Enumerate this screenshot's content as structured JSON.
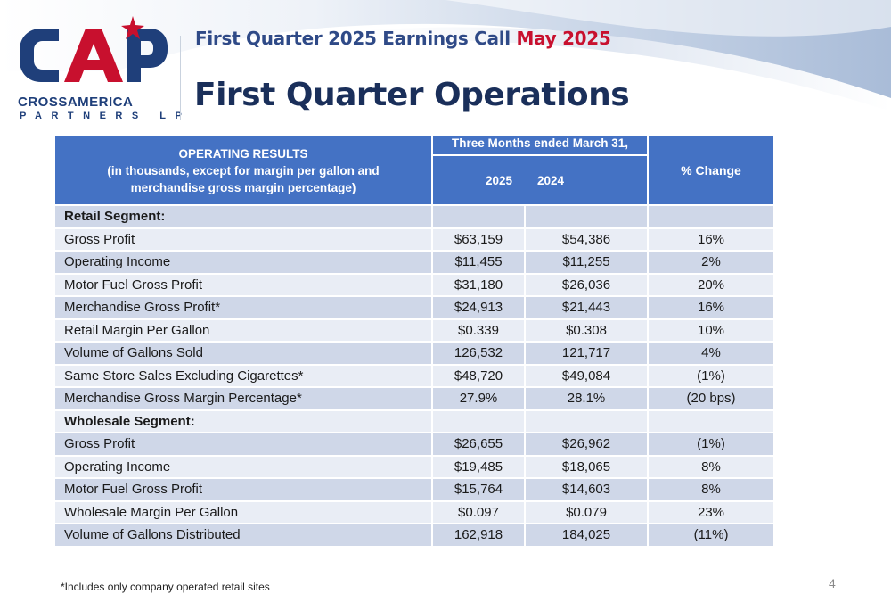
{
  "header": {
    "subtitle_main": "First Quarter 2025 Earnings Call",
    "subtitle_date": "May 2025",
    "title": "First Quarter Operations"
  },
  "logo": {
    "mark": "CAP",
    "line1": "CROSSAMERICA",
    "line2": "PARTNERS LP",
    "colors": {
      "blue": "#1f3f7a",
      "red": "#c8102e"
    }
  },
  "table": {
    "header": {
      "left_title": "OPERATING RESULTS",
      "left_subtitle": "(in thousands, except for margin per gallon and merchandise gross margin percentage)",
      "period": "Three Months ended March 31,",
      "year1": "2025",
      "year2": "2024",
      "change": "% Change"
    },
    "rows": [
      {
        "label": "Retail Segment:",
        "v2025": "",
        "v2024": "",
        "change": ""
      },
      {
        "label": "Gross Profit",
        "v2025": "$63,159",
        "v2024": "$54,386",
        "change": "16%"
      },
      {
        "label": "Operating Income",
        "v2025": "$11,455",
        "v2024": "$11,255",
        "change": "2%"
      },
      {
        "label": "Motor Fuel Gross Profit",
        "v2025": "$31,180",
        "v2024": "$26,036",
        "change": "20%"
      },
      {
        "label": "Merchandise Gross Profit*",
        "v2025": "$24,913",
        "v2024": "$21,443",
        "change": "16%"
      },
      {
        "label": "Retail Margin Per Gallon",
        "v2025": "$0.339",
        "v2024": "$0.308",
        "change": "10%"
      },
      {
        "label": "Volume of Gallons Sold",
        "v2025": "126,532",
        "v2024": "121,717",
        "change": "4%"
      },
      {
        "label": "Same Store Sales Excluding Cigarettes*",
        "v2025": "$48,720",
        "v2024": "$49,084",
        "change": "(1%)"
      },
      {
        "label": "Merchandise Gross Margin Percentage*",
        "v2025": "27.9%",
        "v2024": "28.1%",
        "change": "(20 bps)"
      },
      {
        "label": "Wholesale Segment:",
        "v2025": "",
        "v2024": "",
        "change": ""
      },
      {
        "label": "Gross Profit",
        "v2025": "$26,655",
        "v2024": "$26,962",
        "change": "(1%)"
      },
      {
        "label": "Operating Income",
        "v2025": "$19,485",
        "v2024": "$18,065",
        "change": "8%"
      },
      {
        "label": "Motor Fuel Gross Profit",
        "v2025": "$15,764",
        "v2024": "$14,603",
        "change": "8%"
      },
      {
        "label": "Wholesale Margin Per Gallon",
        "v2025": "$0.097",
        "v2024": "$0.079",
        "change": "23%"
      },
      {
        "label": "Volume of Gallons Distributed",
        "v2025": "162,918",
        "v2024": "184,025",
        "change": "(11%)"
      }
    ]
  },
  "footnote": "*Includes only company operated retail sites",
  "page_number": "4"
}
